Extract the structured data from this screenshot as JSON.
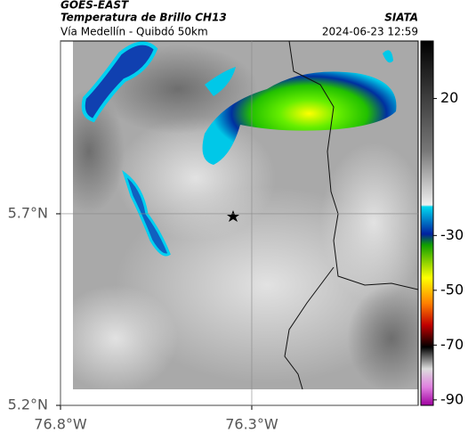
{
  "header": {
    "satellite": "GOES-EAST",
    "product": "Temperatura de Brillo CH13",
    "region": "Vía Medellín - Quibdó 50km",
    "source": "SIATA",
    "datetime": "2024-06-23 12:59"
  },
  "chart_data": {
    "type": "map",
    "xlim": [
      -76.8,
      -75.865
    ],
    "ylim": [
      5.2,
      6.151
    ],
    "xticks": [
      {
        "value": -76.8,
        "label": "76.8°W"
      },
      {
        "value": -76.3,
        "label": "76.3°W"
      }
    ],
    "yticks": [
      {
        "value": 5.7,
        "label": "5.7°N"
      },
      {
        "value": 5.2,
        "label": "5.2°N"
      }
    ],
    "grid": true,
    "colorbar": {
      "lim": [
        -92,
        41
      ],
      "ticks": [
        20,
        -30,
        -50,
        -70,
        -90
      ]
    }
  }
}
